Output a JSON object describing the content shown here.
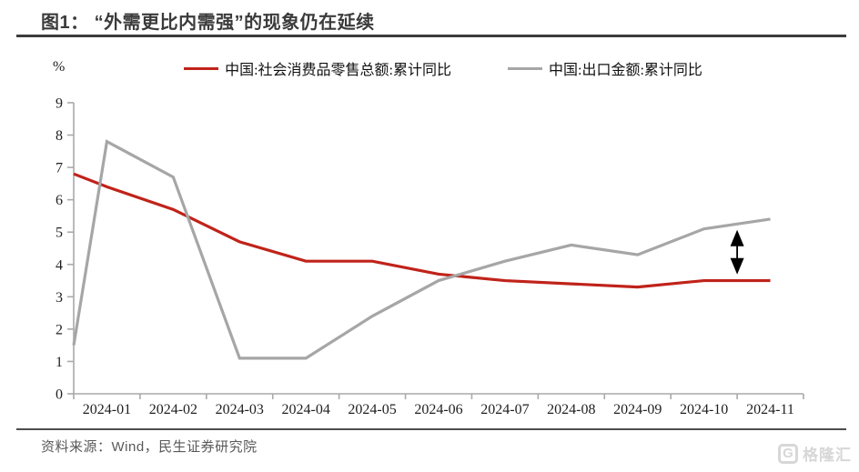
{
  "header": {
    "title": "图1：  “外需更比内需强”的现象仍在延续"
  },
  "chart_data": {
    "type": "line",
    "title": "“外需更比内需强”的现象仍在延续",
    "unit_label": "%",
    "ylim": [
      0,
      9
    ],
    "ytick_step": 1,
    "grid": false,
    "legend_position": "top",
    "categories": [
      "2024-01",
      "2024-02",
      "2024-03",
      "2024-04",
      "2024-05",
      "2024-06",
      "2024-07",
      "2024-08",
      "2024-09",
      "2024-10",
      "2024-11"
    ],
    "series": [
      {
        "name": "中国:社会消费品零售总额:累计同比",
        "color": "#c0231a",
        "edge_value": 6.8,
        "values": [
          6.4,
          5.7,
          4.7,
          4.1,
          4.1,
          3.7,
          3.5,
          3.4,
          3.3,
          3.5,
          3.5
        ]
      },
      {
        "name": "中国:出口金额:累计同比",
        "color": "#a6a6a6",
        "edge_value": 1.5,
        "values": [
          7.8,
          6.7,
          1.1,
          1.1,
          2.4,
          3.5,
          4.1,
          4.6,
          4.3,
          5.1,
          5.4
        ]
      }
    ],
    "annotation_arrow": {
      "between_categories": [
        "2024-10",
        "2024-11"
      ],
      "value_top": 5.07,
      "value_bottom": 3.69,
      "color": "#000000"
    },
    "axis_color": "#a9a9a9",
    "tick_label_color": "#1f1f1f"
  },
  "footer": {
    "source": "资料来源：Wind，民生证券研究院",
    "logo_text": "格隆汇",
    "logo_letter": "G"
  }
}
